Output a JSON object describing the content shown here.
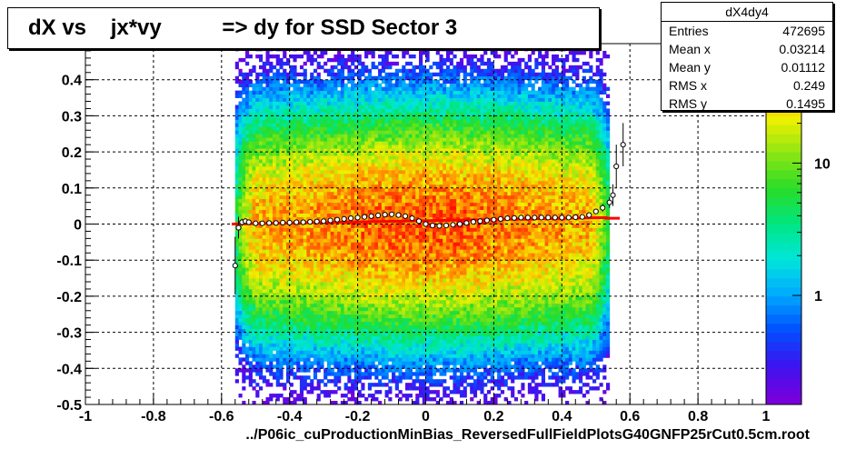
{
  "title": "dX vs    jx*vy          => dy for SSD Sector 3",
  "footer": "../P06ic_cuProductionMinBias_ReversedFullFieldPlotsG40GNFP25rCut0.5cm.root",
  "stats": {
    "name": "dX4dy4",
    "rows": [
      {
        "key": "Entries",
        "value": "472695"
      },
      {
        "key": "Mean x",
        "value": "0.03214"
      },
      {
        "key": "Mean y",
        "value": "0.01112"
      },
      {
        "key": "RMS x",
        "value": "0.249"
      },
      {
        "key": "RMS y",
        "value": "0.1495"
      }
    ]
  },
  "colors": {
    "profile_marker": "#000000",
    "fit_line": "#ff0000",
    "frame": "#000000"
  },
  "chart_data": {
    "type": "heatmap",
    "xlim": [
      -1,
      1
    ],
    "ylim": [
      -0.5,
      0.5
    ],
    "x_ticks": [
      -1,
      -0.8,
      -0.6,
      -0.4,
      -0.2,
      0,
      0.2,
      0.4,
      0.6,
      0.8,
      1
    ],
    "x_tick_labels": [
      "-1",
      "-0.8",
      "-0.6",
      "-0.4",
      "-0.2",
      "0",
      "0.2",
      "0.4",
      "0.6",
      "0.8",
      "1"
    ],
    "y_ticks": [
      -0.5,
      -0.4,
      -0.3,
      -0.2,
      -0.1,
      0,
      0.1,
      0.2,
      0.3,
      0.4
    ],
    "y_tick_labels": [
      "-0.5",
      "-0.4",
      "-0.3",
      "-0.2",
      "-0.1",
      "0",
      "0.1",
      "0.2",
      "0.3",
      "0.4"
    ],
    "grid": true,
    "colorbar": {
      "scale": "log",
      "tick_values": [
        1,
        10
      ],
      "tick_labels": [
        "1",
        "10"
      ],
      "range": [
        0.15,
        80
      ]
    },
    "profile": {
      "x": [
        -0.56,
        -0.55,
        -0.54,
        -0.53,
        -0.52,
        -0.5,
        -0.48,
        -0.46,
        -0.44,
        -0.42,
        -0.4,
        -0.38,
        -0.36,
        -0.34,
        -0.32,
        -0.3,
        -0.28,
        -0.26,
        -0.24,
        -0.22,
        -0.2,
        -0.18,
        -0.16,
        -0.14,
        -0.12,
        -0.1,
        -0.08,
        -0.06,
        -0.04,
        -0.02,
        0,
        0.02,
        0.04,
        0.06,
        0.08,
        0.1,
        0.12,
        0.14,
        0.16,
        0.18,
        0.2,
        0.22,
        0.24,
        0.26,
        0.28,
        0.3,
        0.32,
        0.34,
        0.36,
        0.38,
        0.4,
        0.42,
        0.44,
        0.46,
        0.48,
        0.5,
        0.52,
        0.54,
        0.55,
        0.56,
        0.58
      ],
      "y": [
        -0.115,
        -0.01,
        0.005,
        0.008,
        0.005,
        0.002,
        0.002,
        0.003,
        0.003,
        0.004,
        0.004,
        0.005,
        0.005,
        0.006,
        0.007,
        0.008,
        0.01,
        0.012,
        0.014,
        0.016,
        0.018,
        0.02,
        0.022,
        0.024,
        0.026,
        0.027,
        0.025,
        0.022,
        0.016,
        0.008,
        0.0,
        -0.004,
        -0.005,
        -0.004,
        -0.002,
        0.0,
        0.003,
        0.006,
        0.008,
        0.01,
        0.012,
        0.014,
        0.016,
        0.017,
        0.018,
        0.018,
        0.018,
        0.018,
        0.018,
        0.018,
        0.018,
        0.018,
        0.019,
        0.02,
        0.025,
        0.035,
        0.045,
        0.06,
        0.08,
        0.16,
        0.22
      ],
      "y_err": [
        0.08,
        0.03,
        0.01,
        0.008,
        0.006,
        0.004,
        0.003,
        0.003,
        0.003,
        0.003,
        0.003,
        0.003,
        0.003,
        0.003,
        0.003,
        0.003,
        0.003,
        0.003,
        0.003,
        0.003,
        0.003,
        0.003,
        0.003,
        0.003,
        0.003,
        0.003,
        0.003,
        0.003,
        0.003,
        0.003,
        0.003,
        0.003,
        0.003,
        0.003,
        0.003,
        0.003,
        0.003,
        0.003,
        0.003,
        0.003,
        0.003,
        0.003,
        0.003,
        0.003,
        0.003,
        0.003,
        0.003,
        0.003,
        0.003,
        0.003,
        0.003,
        0.003,
        0.003,
        0.004,
        0.005,
        0.006,
        0.01,
        0.015,
        0.03,
        0.06,
        0.06
      ]
    },
    "fit_line": {
      "x": [
        -0.57,
        0.53,
        0.53,
        0.57
      ],
      "y": [
        0.0,
        0.018,
        0.016,
        0.016
      ]
    },
    "density_model": {
      "x_range": [
        -0.56,
        0.54
      ],
      "y_range": [
        -0.5,
        0.5
      ],
      "peak_count": 60,
      "y_width": 0.13
    }
  }
}
